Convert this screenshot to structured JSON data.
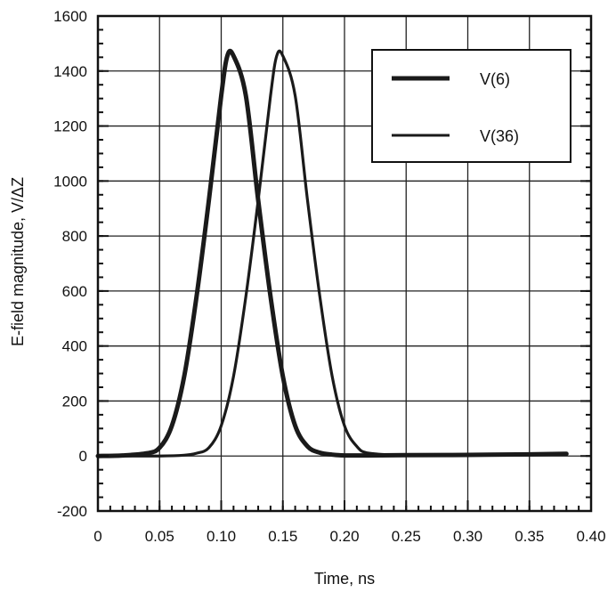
{
  "chart_data": {
    "type": "line",
    "xlabel": "Time, ns",
    "ylabel": "E-field magnitude, V/ΔZ",
    "xlim": [
      0,
      0.4
    ],
    "ylim": [
      -200,
      1600
    ],
    "x_ticks": [
      0,
      0.05,
      0.1,
      0.15,
      0.2,
      0.25,
      0.3,
      0.35,
      0.4
    ],
    "x_tick_labels": [
      "0",
      "0.05",
      "0.10",
      "0.15",
      "0.20",
      "0.25",
      "0.30",
      "0.35",
      "0.40"
    ],
    "y_ticks": [
      -200,
      0,
      200,
      400,
      600,
      800,
      1000,
      1200,
      1400,
      1600
    ],
    "y_tick_labels": [
      "-200",
      "0",
      "200",
      "400",
      "600",
      "800",
      "1000",
      "1200",
      "1400",
      "1600"
    ],
    "grid": true,
    "legend_position": "top-right",
    "series": [
      {
        "name": "V(6)",
        "color": "#1a1a1a",
        "x": [
          0,
          0.02,
          0.04,
          0.05,
          0.06,
          0.07,
          0.08,
          0.09,
          0.1,
          0.105,
          0.11,
          0.12,
          0.13,
          0.14,
          0.15,
          0.16,
          0.17,
          0.18,
          0.19,
          0.2,
          0.22,
          0.25,
          0.3,
          0.35,
          0.38
        ],
        "y": [
          0,
          2,
          10,
          30,
          110,
          290,
          580,
          930,
          1310,
          1455,
          1455,
          1310,
          930,
          580,
          290,
          110,
          35,
          12,
          5,
          2,
          2,
          3,
          4,
          6,
          8
        ]
      },
      {
        "name": "V(36)",
        "color": "#1a1a1a",
        "x": [
          0,
          0.05,
          0.07,
          0.08,
          0.09,
          0.1,
          0.11,
          0.12,
          0.13,
          0.14,
          0.145,
          0.15,
          0.16,
          0.17,
          0.18,
          0.19,
          0.2,
          0.21,
          0.22,
          0.25,
          0.3,
          0.35,
          0.38
        ],
        "y": [
          0,
          0,
          3,
          10,
          30,
          110,
          290,
          580,
          930,
          1310,
          1455,
          1455,
          1310,
          930,
          580,
          290,
          110,
          35,
          10,
          3,
          3,
          4,
          6
        ]
      }
    ]
  }
}
